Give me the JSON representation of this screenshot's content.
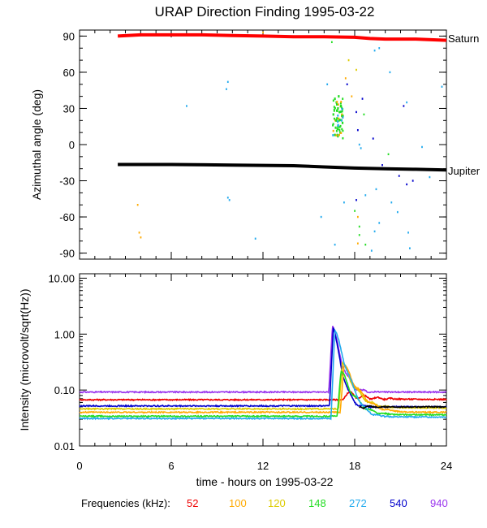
{
  "chart_data": [
    {
      "type": "scatter",
      "title": "URAP Direction Finding  1995-03-22",
      "ylabel": "Azimuthal angle (deg)",
      "xlim": [
        0,
        24
      ],
      "ylim": [
        -95,
        95
      ],
      "yticks": [
        90,
        60,
        30,
        0,
        -30,
        -60,
        -90
      ],
      "ytick_labels": [
        "90",
        "60",
        "30",
        "0",
        "-30",
        "-60",
        "-90"
      ],
      "series": [
        {
          "name": "Saturn",
          "color": "#ff0000",
          "kind": "line",
          "x": [
            2.5,
            4,
            6,
            8,
            10,
            12,
            14,
            16,
            18,
            19,
            20,
            22,
            24
          ],
          "y": [
            90,
            91,
            91,
            91,
            90.5,
            90,
            89.5,
            89.5,
            89,
            88,
            87.5,
            87.5,
            86.5
          ]
        },
        {
          "name": "Jupiter",
          "color": "#000000",
          "kind": "line",
          "x": [
            2.5,
            6,
            10,
            14,
            16,
            18,
            20,
            22,
            24
          ],
          "y": [
            -16.5,
            -16.5,
            -17,
            -17.5,
            -18.5,
            -19.5,
            -20,
            -20.5,
            -21
          ]
        }
      ],
      "burst": {
        "center": [
          16.9,
          22
        ],
        "color": "#22dd22",
        "points": [
          [
            16.7,
            38
          ],
          [
            16.8,
            35
          ],
          [
            16.9,
            30
          ],
          [
            17.0,
            27
          ],
          [
            17.1,
            32
          ],
          [
            16.6,
            25
          ],
          [
            16.8,
            20
          ],
          [
            16.9,
            15
          ],
          [
            17.0,
            12
          ],
          [
            16.7,
            8
          ],
          [
            17.2,
            18
          ],
          [
            16.95,
            40
          ],
          [
            17.05,
            10
          ],
          [
            16.85,
            28
          ],
          [
            17.15,
            24
          ],
          [
            16.75,
            14
          ]
        ]
      },
      "scatter_points": [
        {
          "color": "#22aaee",
          "points": [
            [
              7,
              32
            ],
            [
              9.7,
              52
            ],
            [
              9.6,
              46
            ],
            [
              16.2,
              50
            ],
            [
              18.3,
              0
            ],
            [
              18.4,
              -3
            ],
            [
              19.3,
              78
            ],
            [
              19.6,
              80
            ],
            [
              20.3,
              60
            ],
            [
              21.4,
              35
            ],
            [
              22.4,
              -2
            ],
            [
              23.7,
              48
            ],
            [
              9.7,
              -44
            ],
            [
              9.8,
              -46
            ],
            [
              15.8,
              -60
            ],
            [
              18.7,
              -42
            ],
            [
              19.4,
              -37
            ],
            [
              20.4,
              -48
            ],
            [
              20.8,
              -56
            ],
            [
              19.6,
              -65
            ],
            [
              19.3,
              -72
            ],
            [
              21.5,
              -73
            ],
            [
              11.5,
              -78
            ],
            [
              16.7,
              -83
            ],
            [
              19.1,
              -88
            ],
            [
              22.9,
              -27
            ],
            [
              21.6,
              -86
            ],
            [
              17.3,
              -48
            ]
          ]
        },
        {
          "color": "#0000cc",
          "points": [
            [
              17.5,
              50
            ],
            [
              18.1,
              27
            ],
            [
              18.2,
              12
            ],
            [
              19.2,
              5
            ],
            [
              19.8,
              -17
            ],
            [
              21.2,
              32
            ],
            [
              20.9,
              -26
            ],
            [
              21.4,
              -33
            ],
            [
              18.1,
              -46
            ],
            [
              18.5,
              38
            ],
            [
              21.8,
              -30
            ]
          ]
        },
        {
          "color": "#ffaa00",
          "points": [
            [
              3.8,
              -50
            ],
            [
              3.9,
              -73
            ],
            [
              4.0,
              -77
            ],
            [
              17.4,
              55
            ],
            [
              17.8,
              40
            ],
            [
              18.2,
              -60
            ],
            [
              18.2,
              -82
            ],
            [
              12.0,
              93
            ]
          ]
        },
        {
          "color": "#22dd22",
          "points": [
            [
              18.0,
              -55
            ],
            [
              18.3,
              -68
            ],
            [
              18.7,
              -83
            ],
            [
              20.2,
              -8
            ],
            [
              18.3,
              -75
            ],
            [
              18.6,
              25
            ],
            [
              16.5,
              85
            ]
          ]
        },
        {
          "color": "#ddcc00",
          "points": [
            [
              17.6,
              70
            ],
            [
              18.1,
              62
            ]
          ]
        }
      ],
      "right_labels": [
        "Saturn",
        "Jupiter"
      ]
    },
    {
      "type": "line",
      "ylabel": "Intensity (microvolt/sqrt(Hz))",
      "xlabel": "time - hours on 1995-03-22",
      "xlim": [
        0,
        24
      ],
      "ylim": [
        0.01,
        12
      ],
      "yscale": "log",
      "xticks": [
        0,
        6,
        12,
        18,
        24
      ],
      "xtick_labels": [
        "0",
        "6",
        "12",
        "18",
        "24"
      ],
      "yticks": [
        10,
        1,
        0.1,
        0.01
      ],
      "ytick_labels": [
        "10.00",
        "1.00",
        "0.10",
        "0.01"
      ],
      "series": [
        {
          "name": "940",
          "color": "#9933ee",
          "baseline": 0.092,
          "after": 0.092,
          "peak": 1.45,
          "peak_time": 16.55,
          "decay": 0.35
        },
        {
          "name": "52",
          "color": "#ee0000",
          "baseline": 0.067,
          "after": 0.068,
          "peak": 0.085,
          "peak_time": 17.5,
          "decay": 1.2
        },
        {
          "name": "540",
          "color": "#0000cc",
          "baseline": 0.052,
          "after": 0.05,
          "peak": 1.3,
          "peak_time": 16.6,
          "decay": 0.3
        },
        {
          "name": "120",
          "color": "#ddcc00",
          "baseline": 0.046,
          "after": 0.048,
          "peak": 0.3,
          "peak_time": 17.2,
          "decay": 0.6
        },
        {
          "name": "100",
          "color": "#ffaa00",
          "baseline": 0.04,
          "after": 0.04,
          "peak": 0.28,
          "peak_time": 17.3,
          "decay": 0.7
        },
        {
          "name": "148",
          "color": "#22dd22",
          "baseline": 0.034,
          "after": 0.036,
          "peak": 0.22,
          "peak_time": 17.1,
          "decay": 0.6
        },
        {
          "name": "272",
          "color": "#22aaee",
          "baseline": 0.031,
          "after": 0.033,
          "peak": 1.2,
          "peak_time": 16.7,
          "decay": 0.45
        },
        {
          "name": "ref",
          "color": "#000000",
          "baseline": 0.05,
          "after": 0.05,
          "peak": 0.05,
          "peak_time": 17,
          "decay": 1.0,
          "start": 18.3
        }
      ]
    }
  ],
  "legend": {
    "label": "Frequencies (kHz):",
    "entries": [
      {
        "text": "52",
        "color": "#ee0000"
      },
      {
        "text": "100",
        "color": "#ffaa00"
      },
      {
        "text": "120",
        "color": "#ddcc00"
      },
      {
        "text": "148",
        "color": "#22dd22"
      },
      {
        "text": "272",
        "color": "#22aaee"
      },
      {
        "text": "540",
        "color": "#0000cc"
      },
      {
        "text": "940",
        "color": "#9933ee"
      }
    ]
  }
}
